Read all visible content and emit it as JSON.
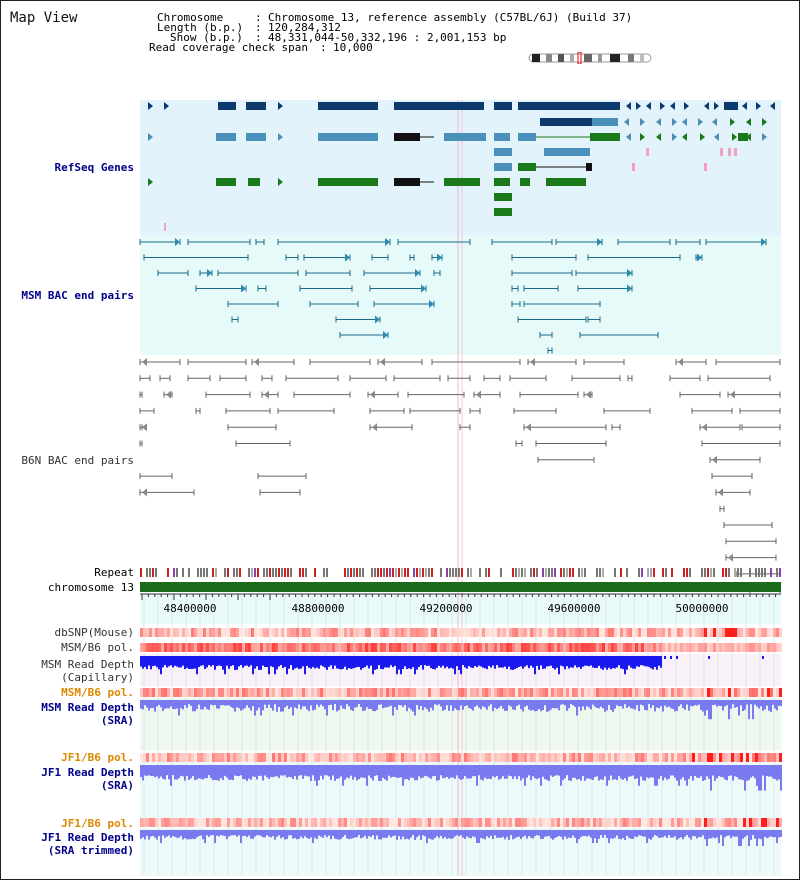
{
  "title": "Map View",
  "info": {
    "chromosome_label": "Chromosome",
    "chromosome_value": "Chromosome 13, reference assembly (C57BL/6J) (Build 37)",
    "length_label": "Length (b.p.)",
    "length_value": "120,284,312",
    "show_label": "Show (b.p.)",
    "show_value": "48,331,044-50,332,196 : 2,001,153 bp",
    "coverage_label": "Read coverage check span",
    "coverage_value": "10,000"
  },
  "tracks": {
    "refseq": "RefSeq Genes",
    "msm_bac": "MSM BAC end pairs",
    "b6n_bac": "B6N BAC end pairs",
    "repeat": "Repeat",
    "chromosome": "chromosome 13",
    "dbsnp": "dbSNP(Mouse)",
    "msm_b6_pol": "MSM/B6 pol.",
    "msm_read_depth_cap_1": "MSM Read Depth",
    "msm_read_depth_cap_2": "(Capillary)",
    "msm_b6_pol_2": "MSM/B6 pol.",
    "msm_read_depth_sra_1": "MSM Read Depth",
    "msm_read_depth_sra_2": "(SRA)",
    "jf1_b6_pol": "JF1/B6 pol.",
    "jf1_read_depth_1": "JF1 Read Depth",
    "jf1_read_depth_2": "(SRA)",
    "jf1_b6_pol_2": "JF1/B6 pol.",
    "jf1_read_depth_t1": "JF1 Read Depth",
    "jf1_read_depth_t2": "(SRA trimmed)"
  },
  "axis_ticks": [
    "48400000",
    "48800000",
    "49200000",
    "49600000",
    "50000000"
  ],
  "colors": {
    "refseq_bg": "#e3f3fb",
    "msm_bg": "#e6fafa",
    "navy": "#0c3a6e",
    "steel": "#4a90b8",
    "green": "#1a7a1a",
    "pink": "#f4a0c0",
    "chrom_green": "#1a6b1a",
    "depth_blue": "#1a1aee",
    "depth_light_blue": "#7a7af0",
    "pol_red": "#e85050",
    "label_navy": "#00008b",
    "label_orange": "#dd8800"
  }
}
